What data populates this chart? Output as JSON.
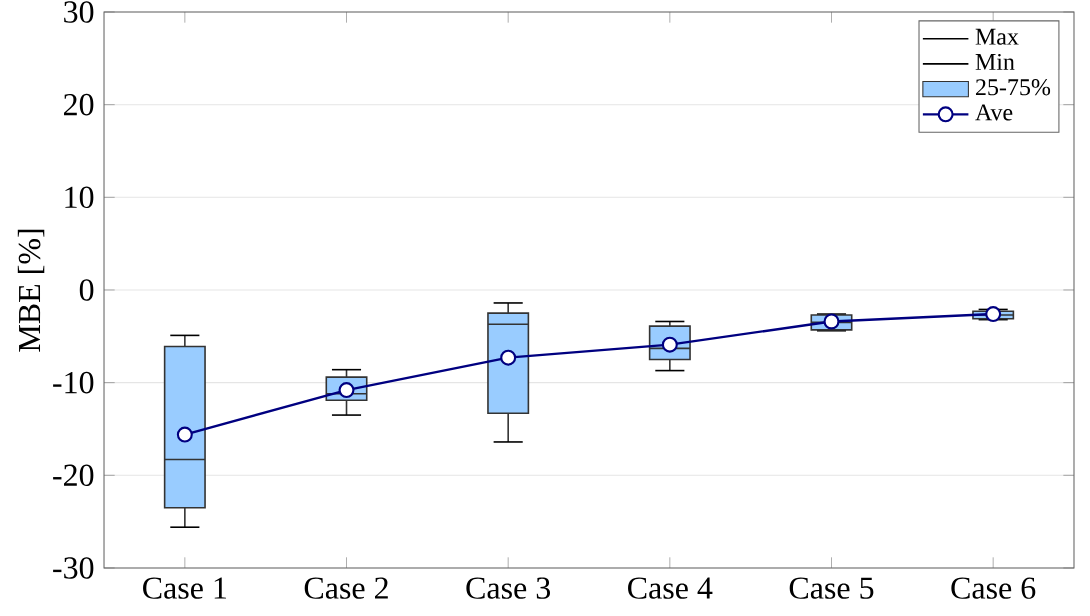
{
  "chart_data": {
    "type": "box",
    "ylabel": "MBE [%]",
    "categories": [
      "Case 1",
      "Case 2",
      "Case 3",
      "Case 4",
      "Case 5",
      "Case 6"
    ],
    "annotations": [
      "Max",
      "Min"
    ],
    "ylim": [
      -30,
      30
    ],
    "yticks": [
      -30,
      -20,
      -10,
      0,
      10,
      20,
      30
    ],
    "grid": "y",
    "legend": "top right",
    "series": [
      {
        "name": "25-75%",
        "color": "#99ccff",
        "boxes": [
          {
            "low": -25.6,
            "q1": -23.5,
            "median": -18.3,
            "q3": -6.1,
            "high": -4.9
          },
          {
            "low": -13.5,
            "q1": -11.9,
            "median": -11.2,
            "q3": -9.4,
            "high": -8.6
          },
          {
            "low": -16.4,
            "q1": -13.3,
            "median": -3.7,
            "q3": -2.5,
            "high": -1.4
          },
          {
            "low": -8.7,
            "q1": -7.5,
            "median": -6.3,
            "q3": -3.9,
            "high": -3.4
          },
          {
            "low": -4.4,
            "q1": -4.3,
            "median": -3.5,
            "q3": -2.7,
            "high": -2.6
          },
          {
            "low": -3.2,
            "q1": -3.1,
            "median": -2.7,
            "q3": -2.3,
            "high": -2.1
          }
        ]
      },
      {
        "name": "Ave",
        "type": "line",
        "marker": "circle",
        "line_style": "solid",
        "color": "#000080",
        "values": [
          -15.6,
          -10.8,
          -7.3,
          -5.9,
          -3.4,
          -2.6
        ]
      }
    ]
  }
}
